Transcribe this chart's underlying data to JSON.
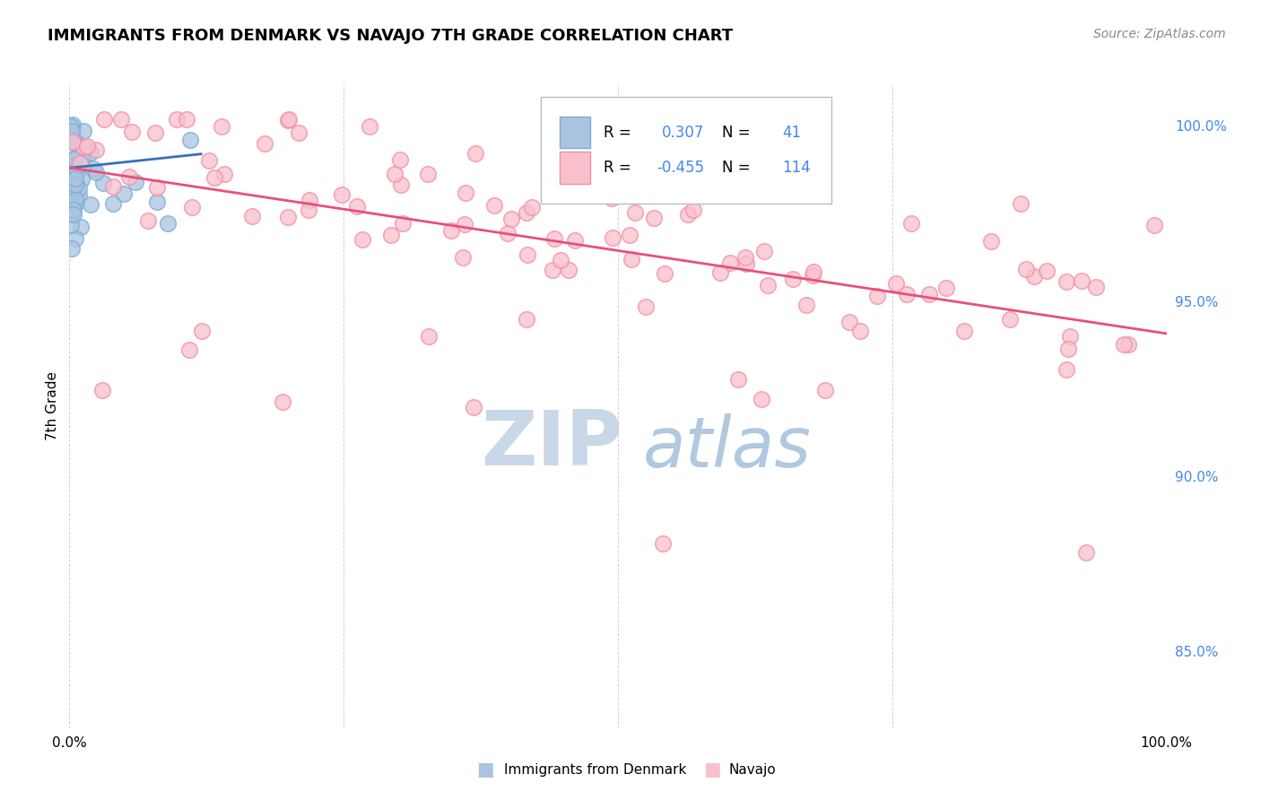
{
  "title": "IMMIGRANTS FROM DENMARK VS NAVAJO 7TH GRADE CORRELATION CHART",
  "source_text": "Source: ZipAtlas.com",
  "ylabel": "7th Grade",
  "legend_label_blue": "Immigrants from Denmark",
  "legend_label_pink": "Navajo",
  "r_blue": 0.307,
  "n_blue": 41,
  "r_pink": -0.455,
  "n_pink": 114,
  "xlim": [
    0.0,
    1.0
  ],
  "ylim": [
    0.828,
    1.012
  ],
  "y_tick_right": [
    0.85,
    0.9,
    0.95,
    1.0
  ],
  "y_tick_right_labels": [
    "85.0%",
    "90.0%",
    "95.0%",
    "100.0%"
  ],
  "grid_color": "#cccccc",
  "background_color": "#ffffff",
  "blue_color": "#aac4e0",
  "blue_edge_color": "#7aaed4",
  "pink_color": "#f9c0cc",
  "pink_edge_color": "#f090a8",
  "blue_line_color": "#3b6fbe",
  "pink_line_color": "#e8507a",
  "watermark_zip_color": "#c8d8e8",
  "watermark_atlas_color": "#b0c8e0",
  "title_fontsize": 13,
  "source_fontsize": 10,
  "right_tick_color": "#4488ee"
}
